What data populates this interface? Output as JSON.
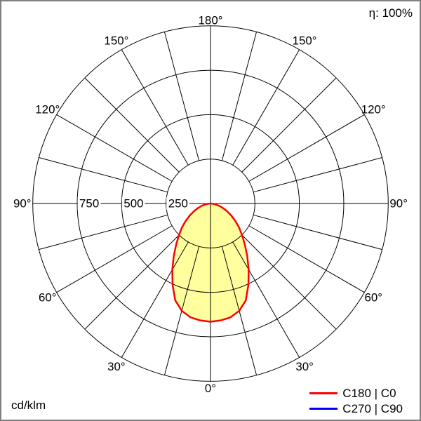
{
  "meta": {
    "efficiency_label": "η: 100%",
    "unit_label": "cd/klm"
  },
  "legend": [
    {
      "label": "C180 | C0",
      "color": "#ff0000"
    },
    {
      "label": "C270 | C90",
      "color": "#0000ff"
    }
  ],
  "chart_data": {
    "type": "polar",
    "unit": "cd/klm",
    "radial_axis": {
      "max": 1000,
      "ticks": [
        250,
        500,
        750
      ],
      "tick_labels": [
        "250",
        "500",
        "750"
      ]
    },
    "angle_labels_deg": [
      0,
      30,
      60,
      90,
      120,
      150,
      180
    ],
    "grid_step_deg": 15,
    "series": [
      {
        "name": "C180 | C0",
        "color": "#ff0000",
        "fill": "#ffff9e",
        "symmetric": true,
        "gamma_deg": [
          0,
          5,
          10,
          15,
          20,
          25,
          30,
          35,
          40,
          45,
          50,
          55,
          60,
          65,
          70,
          75,
          80,
          85,
          90
        ],
        "intensity_cd_per_klm": [
          665,
          660,
          650,
          625,
          580,
          505,
          430,
          360,
          300,
          250,
          210,
          170,
          135,
          103,
          75,
          52,
          30,
          14,
          0
        ]
      },
      {
        "name": "C270 | C90",
        "color": "#0000ff",
        "visible": false
      }
    ]
  }
}
